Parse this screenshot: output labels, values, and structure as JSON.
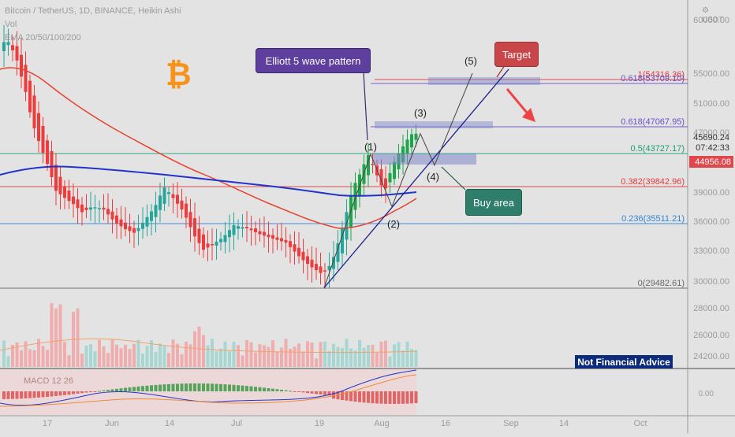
{
  "header": {
    "symbol_line": "Bitcoin / TetherUS, 1D, BINANCE, Heikin Ashi",
    "vol_label": "Vol",
    "ema_label": "EMA 20/50/100/200",
    "indicator_label": "MACD 12 26"
  },
  "currency": "USDT",
  "logo_glyph": "₿",
  "price_axis": {
    "ticks": [
      "60000.00",
      "55000.00",
      "51000.00",
      "47000.00",
      "43000.00",
      "39000.00",
      "36000.00",
      "33000.00",
      "30000.00",
      "28000.00",
      "26000.00",
      "24200.00"
    ],
    "current_price": "45690.24",
    "countdown": "07:42:33",
    "last_price_badge": "44956.08",
    "macd_tick": "0.00"
  },
  "time_axis": {
    "ticks": [
      "17",
      "Jun",
      "14",
      "Jul",
      "19",
      "Aug",
      "16",
      "Sep",
      "14",
      "Oct"
    ]
  },
  "fib_levels": [
    {
      "ratio": "1",
      "value": "54316.36",
      "color": "#e23b3b"
    },
    {
      "ratio": "0.618",
      "value": "53709.10",
      "color": "#6a4fc9"
    },
    {
      "ratio": "0.618",
      "value": "47067.95",
      "color": "#6a4fc9"
    },
    {
      "ratio": "0.5",
      "value": "43727.17",
      "color": "#1f9e78"
    },
    {
      "ratio": "0.382",
      "value": "39842.96",
      "color": "#e23b3b"
    },
    {
      "ratio": "0.236",
      "value": "35511.21",
      "color": "#2f86d6"
    },
    {
      "ratio": "0",
      "value": "29482.61",
      "color": "#6b6b6b"
    }
  ],
  "waves": [
    "(1)",
    "(2)",
    "(3)",
    "(4)",
    "(5)"
  ],
  "annotations": {
    "elliott": "Elliott 5 wave pattern",
    "target": "Target",
    "buy_area": "Buy area",
    "disclaimer": "Not Financial Advice"
  },
  "colors": {
    "up": "#26a69a",
    "up_bright": "#1ea64a",
    "down": "#ef3b3b",
    "ema_red": "#e8412c",
    "ema_blue": "#2233cc",
    "elliott_fill": "#5e3f9e",
    "target_fill": "#c8454a",
    "buy_fill": "#2f7d6b",
    "logo": "#f7931a"
  },
  "chart_data": {
    "type": "candlestick",
    "series_style": "Heikin Ashi",
    "timeframe": "1D",
    "ylim": [
      24200,
      62000
    ],
    "key_prices": {
      "low_july": 29482.61,
      "high_target": 54316.36,
      "last": 44956.08
    },
    "wave_points_usd": {
      "start": 29500,
      "w1": 44000,
      "w2": 37500,
      "w3": 46800,
      "w4": 42500,
      "w5": 55000
    }
  }
}
